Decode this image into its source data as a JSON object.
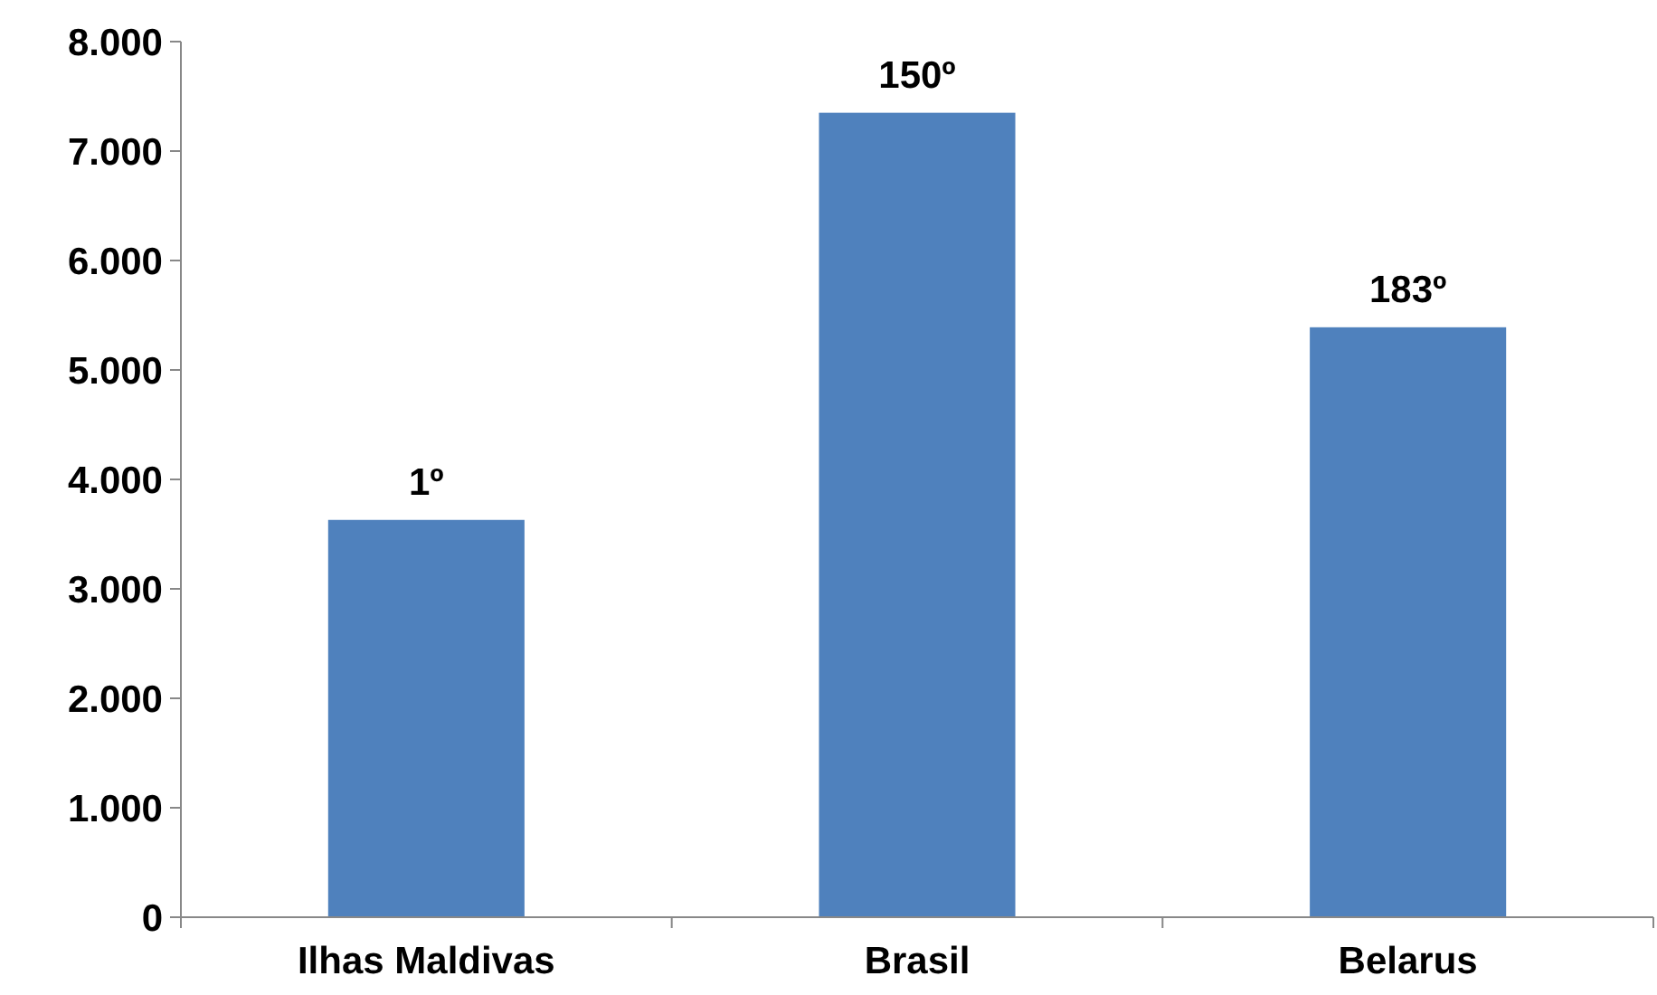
{
  "chart_data": {
    "type": "bar",
    "categories": [
      "Ilhas Maldivas",
      "Brasil",
      "Belarus"
    ],
    "values": [
      3630,
      7350,
      5390
    ],
    "annotations": [
      {
        "text": "1º",
        "x": "Ilhas Maldivas",
        "y": 3630
      },
      {
        "text": "150º",
        "x": "Brasil",
        "y": 7350
      },
      {
        "text": "183º",
        "x": "Belarus",
        "y": 5390
      }
    ],
    "color": "#4f81bd",
    "ylim": [
      0,
      8000
    ],
    "yticks": [
      {
        "value": 0,
        "label": "0"
      },
      {
        "value": 1000,
        "label": "1.000"
      },
      {
        "value": 2000,
        "label": "2.000"
      },
      {
        "value": 3000,
        "label": "3.000"
      },
      {
        "value": 4000,
        "label": "4.000"
      },
      {
        "value": 5000,
        "label": "5.000"
      },
      {
        "value": 6000,
        "label": "6.000"
      },
      {
        "value": 7000,
        "label": "7.000"
      },
      {
        "value": 8000,
        "label": "8.000"
      }
    ],
    "grid": false
  }
}
